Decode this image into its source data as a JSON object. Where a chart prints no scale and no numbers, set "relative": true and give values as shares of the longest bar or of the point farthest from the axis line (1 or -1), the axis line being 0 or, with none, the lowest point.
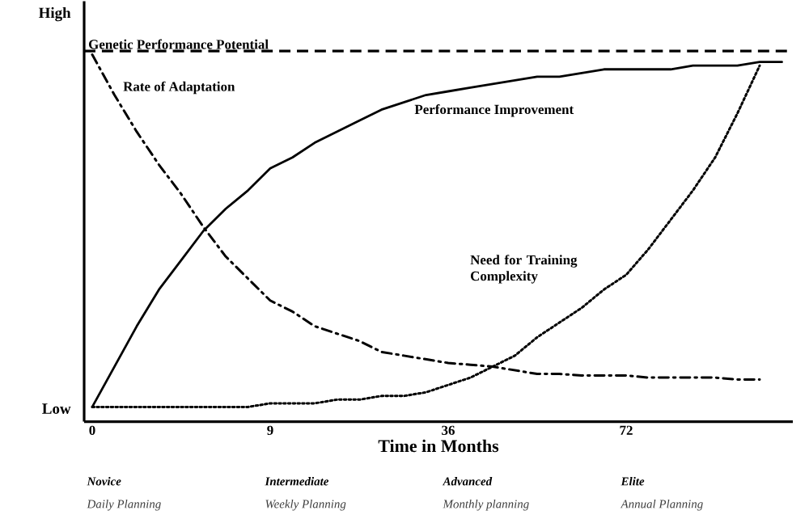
{
  "chart_data": {
    "type": "line",
    "xlabel": "Time in Months",
    "relative": true,
    "categories": [
      "0",
      null,
      null,
      null,
      null,
      null,
      null,
      null,
      "9",
      null,
      null,
      null,
      null,
      null,
      null,
      null,
      "36",
      null,
      null,
      null,
      null,
      null,
      null,
      null,
      "72",
      null,
      null,
      null,
      null,
      null,
      null,
      null
    ],
    "series": [
      {
        "name": "Performance Improvement",
        "color": "#000000",
        "line_style": "solid",
        "values": [
          0.04,
          0.15,
          0.26,
          0.36,
          0.44,
          0.52,
          0.58,
          0.63,
          0.69,
          0.72,
          0.76,
          0.79,
          0.82,
          0.85,
          0.87,
          0.89,
          0.9,
          0.91,
          0.92,
          0.93,
          0.94,
          0.94,
          0.95,
          0.96,
          0.96,
          0.96,
          0.96,
          0.97,
          0.97,
          0.97,
          0.98,
          0.98
        ]
      },
      {
        "name": "Rate of Adaptation",
        "color": "#000000",
        "line_style": "dashdot",
        "values": [
          1,
          0.89,
          0.79,
          0.7,
          0.62,
          0.53,
          0.45,
          0.39,
          0.33,
          0.3,
          0.26,
          0.24,
          0.22,
          0.19,
          0.18,
          0.17,
          0.16,
          0.155,
          0.15,
          0.14,
          0.13,
          0.13,
          0.126,
          0.126,
          0.126,
          0.12,
          0.12,
          0.12,
          0.12,
          0.115,
          0.115,
          null
        ]
      },
      {
        "name": "Need for Training Complexity",
        "color": "#000000",
        "line_style": "dotted",
        "values": [
          0.04,
          0.04,
          0.04,
          0.04,
          0.04,
          0.04,
          0.04,
          0.04,
          0.05,
          0.05,
          0.05,
          0.06,
          0.06,
          0.07,
          0.07,
          0.08,
          0.1,
          0.12,
          0.15,
          0.18,
          0.23,
          0.27,
          0.31,
          0.36,
          0.4,
          0.47,
          0.55,
          0.63,
          0.72,
          0.84,
          0.97,
          null
        ]
      }
    ],
    "ref_lines": [
      {
        "axis": "y",
        "value": 1.01,
        "label": "Genetic Performance Potential",
        "color": "#000000",
        "line_style": "dashed"
      }
    ],
    "annotations": [
      "High",
      "Low",
      "Novice",
      "Daily Planning",
      "Intermediate",
      "Weekly Planning",
      "Advanced",
      "Monthly planning",
      "Elite",
      "Annual Planning"
    ]
  }
}
